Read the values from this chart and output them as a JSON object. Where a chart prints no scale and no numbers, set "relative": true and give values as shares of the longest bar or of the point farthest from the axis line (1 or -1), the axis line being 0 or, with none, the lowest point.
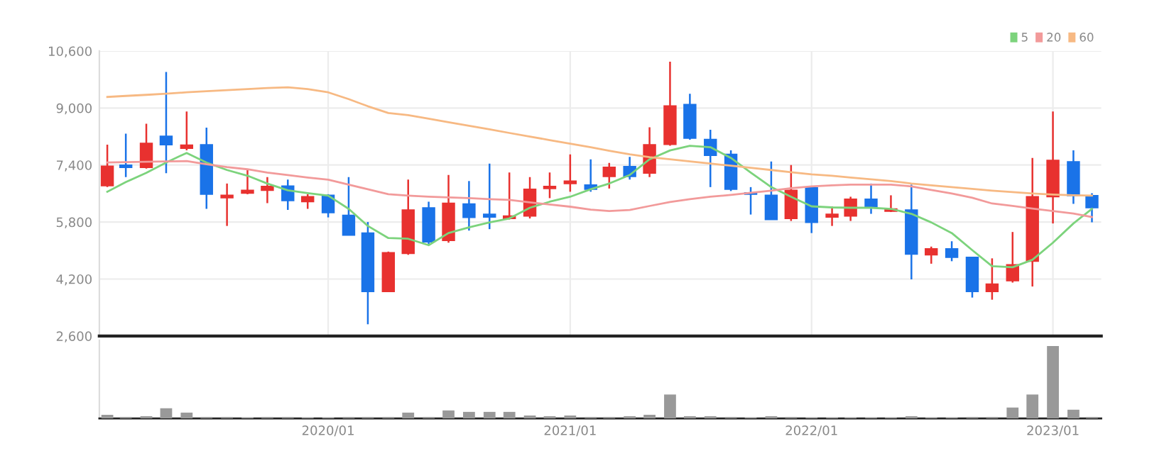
{
  "chart_data": [
    {
      "type": "candlestick",
      "x": [
        "2019-02",
        "2019-03",
        "2019-04",
        "2019-05",
        "2019-06",
        "2019-07",
        "2019-08",
        "2019-09",
        "2019-10",
        "2019-11",
        "2019-12",
        "2020-01",
        "2020-02",
        "2020-03",
        "2020-04",
        "2020-05",
        "2020-06",
        "2020-07",
        "2020-08",
        "2020-09",
        "2020-10",
        "2020-11",
        "2020-12",
        "2021-01",
        "2021-02",
        "2021-03",
        "2021-04",
        "2021-05",
        "2021-06",
        "2021-07",
        "2021-08",
        "2021-09",
        "2021-10",
        "2021-11",
        "2021-12",
        "2022-01",
        "2022-02",
        "2022-03",
        "2022-04",
        "2022-05",
        "2022-06",
        "2022-07",
        "2022-08",
        "2022-09",
        "2022-10",
        "2022-11",
        "2022-12",
        "2023-01",
        "2023-02",
        "2023-03"
      ],
      "ohlc": [
        [
          6820,
          7970,
          6780,
          7370
        ],
        [
          7400,
          8280,
          7060,
          7330
        ],
        [
          7330,
          8560,
          7300,
          8010
        ],
        [
          8210,
          10010,
          7170,
          7970
        ],
        [
          7870,
          8900,
          7810,
          7960
        ],
        [
          7970,
          8450,
          6170,
          6580
        ],
        [
          6480,
          6880,
          5690,
          6550
        ],
        [
          6610,
          7260,
          6580,
          6690
        ],
        [
          6690,
          7060,
          6330,
          6800
        ],
        [
          6810,
          6990,
          6140,
          6400
        ],
        [
          6370,
          6580,
          6170,
          6510
        ],
        [
          6550,
          6580,
          5930,
          6060
        ],
        [
          5990,
          7060,
          5430,
          5430
        ],
        [
          5490,
          5800,
          2930,
          3850
        ],
        [
          3850,
          4970,
          3850,
          4940
        ],
        [
          4920,
          6990,
          4880,
          6140
        ],
        [
          6200,
          6370,
          5150,
          5240
        ],
        [
          5280,
          7120,
          5220,
          6330
        ],
        [
          6310,
          6950,
          5560,
          5930
        ],
        [
          6020,
          7440,
          5600,
          5940
        ],
        [
          5900,
          7190,
          5870,
          5970
        ],
        [
          5970,
          7060,
          5900,
          6720
        ],
        [
          6740,
          7190,
          6470,
          6800
        ],
        [
          6880,
          7700,
          6650,
          6950
        ],
        [
          6840,
          7560,
          6650,
          6720
        ],
        [
          7080,
          7460,
          6740,
          7340
        ],
        [
          7360,
          7630,
          6990,
          7080
        ],
        [
          7170,
          8460,
          7060,
          7970
        ],
        [
          7980,
          10300,
          7940,
          9060
        ],
        [
          9100,
          9400,
          8110,
          8150
        ],
        [
          8120,
          8390,
          6780,
          7670
        ],
        [
          7700,
          7810,
          6670,
          6720
        ],
        [
          6620,
          6780,
          6010,
          6580
        ],
        [
          6550,
          7500,
          5870,
          5870
        ],
        [
          5900,
          7400,
          5830,
          6690
        ],
        [
          6760,
          6780,
          5490,
          5790
        ],
        [
          5940,
          6240,
          5690,
          6020
        ],
        [
          5970,
          6510,
          5830,
          6440
        ],
        [
          6440,
          6880,
          6030,
          6210
        ],
        [
          6100,
          6550,
          6080,
          6170
        ],
        [
          6140,
          6850,
          4190,
          4900
        ],
        [
          4880,
          5110,
          4630,
          5050
        ],
        [
          5050,
          5260,
          4700,
          4810
        ],
        [
          4810,
          4810,
          3680,
          3850
        ],
        [
          3850,
          4780,
          3620,
          4060
        ],
        [
          4150,
          5520,
          4100,
          4600
        ],
        [
          4700,
          7600,
          3990,
          6510
        ],
        [
          6510,
          8900,
          5760,
          7530
        ],
        [
          7490,
          7810,
          6310,
          6540
        ],
        [
          6540,
          6610,
          5790,
          6200
        ]
      ],
      "colors": [
        "#e8312f",
        "#1a73e8",
        "#e8312f",
        "#1a73e8",
        "#e8312f",
        "#1a73e8",
        "#e8312f",
        "#e8312f",
        "#e8312f",
        "#1a73e8",
        "#e8312f",
        "#1a73e8",
        "#1a73e8",
        "#1a73e8",
        "#e8312f",
        "#e8312f",
        "#1a73e8",
        "#e8312f",
        "#1a73e8",
        "#1a73e8",
        "#e8312f",
        "#e8312f",
        "#e8312f",
        "#e8312f",
        "#1a73e8",
        "#e8312f",
        "#1a73e8",
        "#e8312f",
        "#e8312f",
        "#1a73e8",
        "#1a73e8",
        "#1a73e8",
        "#1a73e8",
        "#1a73e8",
        "#e8312f",
        "#1a73e8",
        "#e8312f",
        "#e8312f",
        "#1a73e8",
        "#e8312f",
        "#1a73e8",
        "#e8312f",
        "#1a73e8",
        "#1a73e8",
        "#e8312f",
        "#e8312f",
        "#e8312f",
        "#e8312f",
        "#1a73e8",
        "#1a73e8"
      ],
      "series": [
        {
          "type": "line",
          "name": "5",
          "color": "#7cd37c",
          "values": [
            6650,
            6920,
            7180,
            7470,
            7740,
            7470,
            7260,
            7100,
            6880,
            6690,
            6610,
            6540,
            6170,
            5690,
            5350,
            5330,
            5150,
            5490,
            5650,
            5790,
            5900,
            6200,
            6370,
            6510,
            6720,
            6880,
            7120,
            7560,
            7810,
            7940,
            7900,
            7600,
            7190,
            6780,
            6510,
            6240,
            6210,
            6200,
            6200,
            6170,
            6030,
            5790,
            5490,
            5010,
            4560,
            4530,
            4740,
            5220,
            5760,
            6170
          ]
        },
        {
          "type": "line",
          "name": "20",
          "color": "#f29a9a",
          "values": [
            7470,
            7480,
            7490,
            7500,
            7510,
            7420,
            7340,
            7280,
            7190,
            7120,
            7050,
            6990,
            6850,
            6720,
            6580,
            6540,
            6510,
            6490,
            6470,
            6440,
            6420,
            6350,
            6290,
            6230,
            6150,
            6110,
            6140,
            6250,
            6360,
            6440,
            6510,
            6560,
            6620,
            6680,
            6750,
            6800,
            6830,
            6850,
            6850,
            6850,
            6800,
            6700,
            6600,
            6480,
            6320,
            6250,
            6180,
            6110,
            6040,
            5940
          ]
        },
        {
          "type": "line",
          "name": "60",
          "color": "#f7b983",
          "values": [
            9310,
            9340,
            9370,
            9400,
            9440,
            9470,
            9500,
            9530,
            9560,
            9580,
            9530,
            9440,
            9250,
            9050,
            8860,
            8800,
            8700,
            8600,
            8500,
            8400,
            8300,
            8200,
            8100,
            8000,
            7900,
            7800,
            7700,
            7620,
            7560,
            7500,
            7440,
            7380,
            7320,
            7260,
            7200,
            7140,
            7100,
            7050,
            7000,
            6950,
            6880,
            6830,
            6780,
            6730,
            6680,
            6640,
            6600,
            6570,
            6550,
            6540
          ]
        }
      ],
      "xlim": [
        "2019-01-20",
        "2023-03-15"
      ],
      "xticks": [
        {
          "value": "2020-01",
          "label": null
        },
        {
          "value": "2021-01",
          "label": null
        },
        {
          "value": "2022-01",
          "label": null
        },
        {
          "value": "2023-01",
          "label": null
        }
      ],
      "ylim": [
        2600,
        10600
      ],
      "yticks": [
        {
          "value": 2600,
          "label": "2,600"
        },
        {
          "value": 4200,
          "label": "4,200"
        },
        {
          "value": 5800,
          "label": "5,800"
        },
        {
          "value": 7400,
          "label": "7,400"
        },
        {
          "value": 9000,
          "label": "9,000"
        },
        {
          "value": 10600,
          "label": "10,600"
        }
      ],
      "grid": true,
      "legend": "top right",
      "tick_labels": "y"
    },
    {
      "type": "bar",
      "relative": true,
      "color": "#999999",
      "x": [
        "2019-02",
        "2019-03",
        "2019-04",
        "2019-05",
        "2019-06",
        "2019-07",
        "2019-08",
        "2019-09",
        "2019-10",
        "2019-11",
        "2019-12",
        "2020-01",
        "2020-02",
        "2020-03",
        "2020-04",
        "2020-05",
        "2020-06",
        "2020-07",
        "2020-08",
        "2020-09",
        "2020-10",
        "2020-11",
        "2020-12",
        "2021-01",
        "2021-02",
        "2021-03",
        "2021-04",
        "2021-05",
        "2021-06",
        "2021-07",
        "2021-08",
        "2021-09",
        "2021-10",
        "2021-11",
        "2021-12",
        "2022-01",
        "2022-02",
        "2022-03",
        "2022-04",
        "2022-05",
        "2022-06",
        "2022-07",
        "2022-08",
        "2022-09",
        "2022-10",
        "2022-11",
        "2022-12",
        "2023-01",
        "2023-02",
        "2023-03"
      ],
      "values": [
        0.05,
        0.02,
        0.03,
        0.14,
        0.08,
        0.02,
        0.02,
        0.01,
        0.02,
        0.02,
        0.01,
        0.01,
        0.02,
        0.02,
        0.02,
        0.08,
        0.02,
        0.11,
        0.09,
        0.09,
        0.09,
        0.04,
        0.03,
        0.04,
        0.02,
        0.02,
        0.03,
        0.05,
        0.33,
        0.03,
        0.03,
        0.02,
        0.01,
        0.03,
        0.02,
        0.01,
        0.01,
        0.01,
        0.01,
        0.01,
        0.03,
        0.01,
        0.01,
        0.02,
        0.02,
        0.15,
        0.33,
        1,
        0.12,
        0.02
      ],
      "xlim": [
        "2019-01-20",
        "2023-03-15"
      ],
      "xticks": [
        {
          "value": "2020-01",
          "label": "2020/01"
        },
        {
          "value": "2021-01",
          "label": "2021/01"
        },
        {
          "value": "2022-01",
          "label": "2022/01"
        },
        {
          "value": "2023-01",
          "label": "2023/01"
        }
      ],
      "tick_labels": "x"
    }
  ]
}
